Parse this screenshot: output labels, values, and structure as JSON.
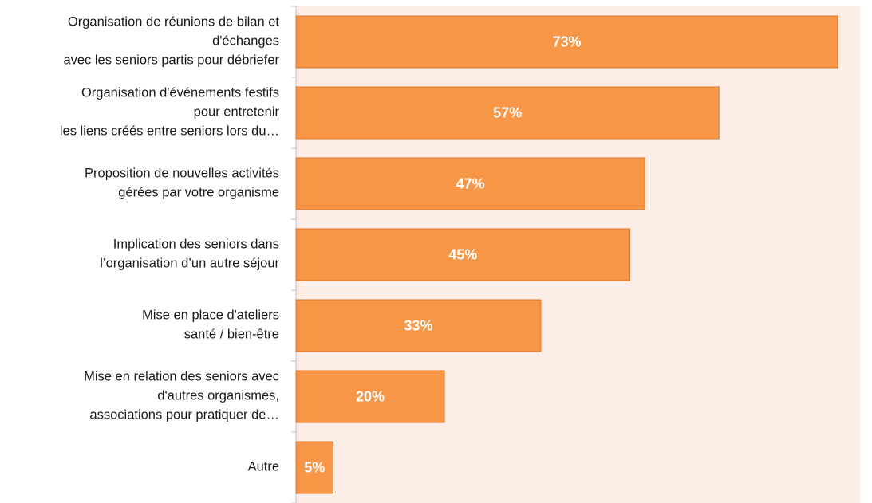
{
  "chart_data": {
    "type": "hbar",
    "categories": [
      "Organisation de réunions de bilan et\nd'échanges\navec les seniors partis pour débriefer",
      "Organisation d'événements festifs\npour entretenir\nles liens créés entre seniors lors du…",
      "Proposition de nouvelles activités\ngérées par votre organisme",
      "Implication des seniors dans\nl’organisation d’un autre séjour",
      "Mise en place d'ateliers\nsanté / bien-être",
      "Mise en relation des seniors avec\nd'autres organismes,\nassociations pour pratiquer de…",
      "Autre"
    ],
    "values": [
      73,
      57,
      47,
      45,
      33,
      20,
      5
    ],
    "value_labels": [
      "73%",
      "57%",
      "47%",
      "45%",
      "33%",
      "20%",
      "5%"
    ],
    "color": "#f79646",
    "xlim": [
      0,
      76
    ]
  }
}
